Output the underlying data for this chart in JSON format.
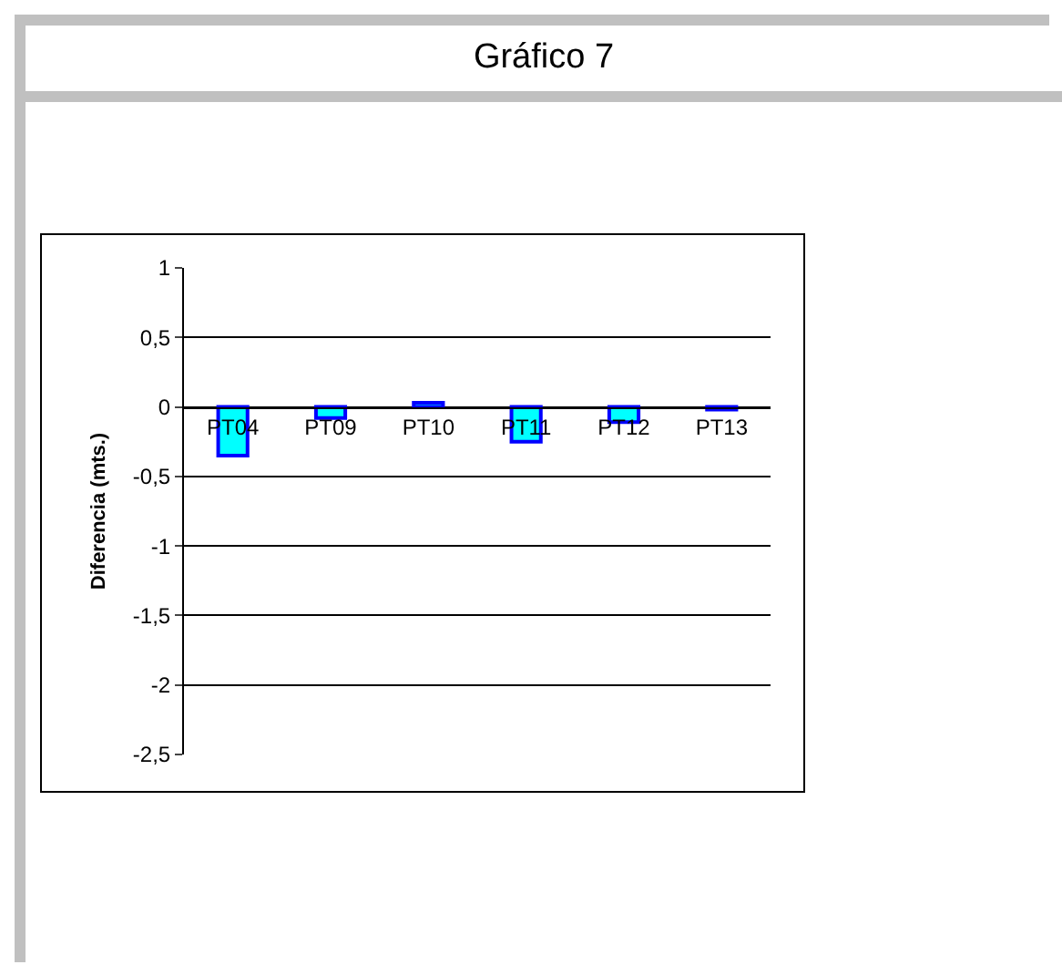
{
  "chart_data": {
    "type": "bar",
    "title": "Gráfico 7",
    "ylabel": "Diferencia (mts.)",
    "categories": [
      "PT04",
      "PT09",
      "PT10",
      "PT11",
      "PT12",
      "PT13"
    ],
    "values": [
      -0.35,
      -0.08,
      0.03,
      -0.25,
      -0.11,
      -0.02
    ],
    "color": "#00ffff",
    "ylim": [
      -2.5,
      1
    ],
    "yticks": [
      {
        "value": 1,
        "label": "1"
      },
      {
        "value": 0.5,
        "label": "0,5"
      },
      {
        "value": 0,
        "label": "0"
      },
      {
        "value": -0.5,
        "label": "-0,5"
      },
      {
        "value": -1,
        "label": "-1"
      },
      {
        "value": -1.5,
        "label": "-1,5"
      },
      {
        "value": -2,
        "label": "-2"
      },
      {
        "value": -2.5,
        "label": "-2,5"
      }
    ],
    "grid": "y"
  }
}
